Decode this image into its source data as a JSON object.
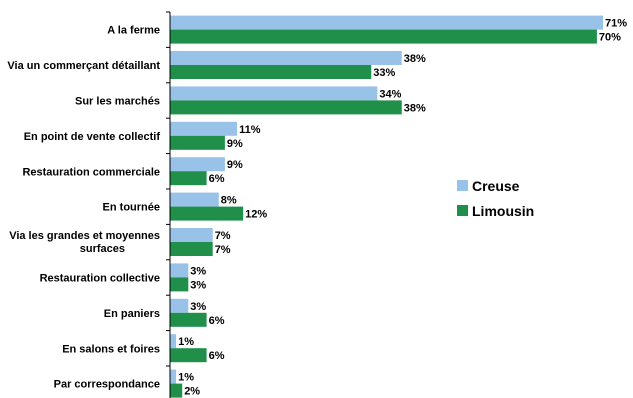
{
  "chart_data": {
    "type": "bar",
    "orientation": "horizontal",
    "title": "",
    "xlabel": "",
    "ylabel": "",
    "xlim": [
      0,
      71
    ],
    "grid": false,
    "legend_position": "right",
    "categories": [
      "A la ferme",
      "Via un commerçant détaillant",
      "Sur les marchés",
      "En point de vente collectif",
      "Restauration commerciale",
      "En tournée",
      "Via les grandes et moyennes surfaces",
      "Restauration collective",
      "En paniers",
      "En salons et foires",
      "Par correspondance"
    ],
    "series": [
      {
        "name": "Creuse",
        "color": "#99c2e8",
        "values": [
          71,
          38,
          34,
          11,
          9,
          8,
          7,
          3,
          3,
          1,
          1
        ],
        "labels": [
          "71%",
          "38%",
          "34%",
          "11%",
          "9%",
          "8%",
          "7%",
          "3%",
          "3%",
          "1%",
          "1%"
        ]
      },
      {
        "name": "Limousin",
        "color": "#1f8f4a",
        "values": [
          70,
          33,
          38,
          9,
          6,
          12,
          7,
          3,
          6,
          6,
          2
        ],
        "labels": [
          "70%",
          "33%",
          "38%",
          "9%",
          "6%",
          "12%",
          "7%",
          "3%",
          "6%",
          "6%",
          "2%"
        ]
      }
    ]
  }
}
